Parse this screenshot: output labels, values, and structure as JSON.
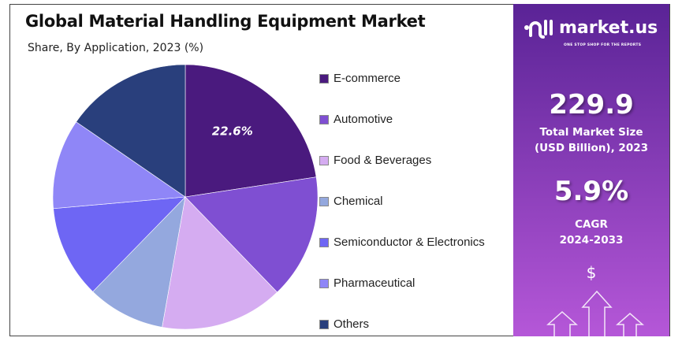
{
  "chart_data": {
    "type": "pie",
    "title": "Global Material Handling Equipment Market",
    "subtitle": "Share, By Application, 2023 (%)",
    "categories": [
      "E-commerce",
      "Automotive",
      "Food & Beverages",
      "Chemical",
      "Semiconductor & Electronics",
      "Pharmaceutical",
      "Others"
    ],
    "values": [
      22.6,
      15.2,
      15.0,
      9.5,
      11.3,
      11.0,
      15.4
    ],
    "colors": [
      "#4a1a7e",
      "#7f4fd2",
      "#d5acf1",
      "#94a8de",
      "#6e66f4",
      "#8f86f7",
      "#293f7c"
    ],
    "data_labels": [
      "22.6%",
      "",
      "",
      "",
      "",
      "",
      ""
    ],
    "legend_position": "right"
  },
  "panel": {
    "brand": "market.us",
    "tagline": "ONE STOP SHOP FOR THE REPORTS",
    "market_size": "229.9",
    "market_size_label_1": "Total Market Size",
    "market_size_label_2": "(USD Billion), 2023",
    "cagr": "5.9%",
    "cagr_label_1": "CAGR",
    "cagr_label_2": "2024-2033",
    "dollar": "$"
  }
}
